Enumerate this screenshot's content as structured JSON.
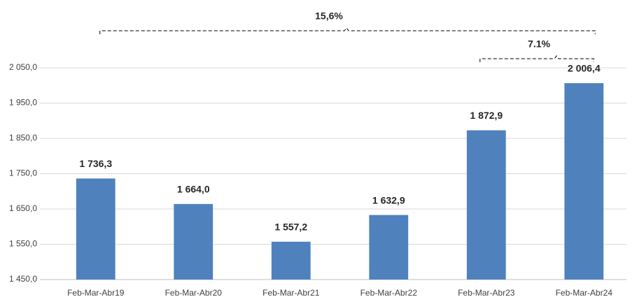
{
  "chart_data": {
    "type": "bar",
    "categories": [
      "Feb-Mar-Abr19",
      "Feb-Mar-Abr20",
      "Feb-Mar-Abr21",
      "Feb-Mar-Abr22",
      "Feb-Mar-Abr23",
      "Feb-Mar-Abr24"
    ],
    "values": [
      1736.3,
      1664.0,
      1557.2,
      1632.9,
      1872.9,
      2006.4
    ],
    "value_labels": [
      "1 736,3",
      "1 664,0",
      "1 557,2",
      "1 632,9",
      "1 872,9",
      "2 006,4"
    ],
    "color": "#4f81bd",
    "ylim": [
      1450,
      2050
    ],
    "yticks": [
      {
        "value": 1450,
        "label": "1 450,0"
      },
      {
        "value": 1550,
        "label": "1 550,0"
      },
      {
        "value": 1650,
        "label": "1 650,0"
      },
      {
        "value": 1750,
        "label": "1 750,0"
      },
      {
        "value": 1850,
        "label": "1 850,0"
      },
      {
        "value": 1950,
        "label": "1 950,0"
      },
      {
        "value": 2050,
        "label": "2 050,0"
      }
    ],
    "grid": true,
    "annotations": [
      "15,6%",
      "7.1%"
    ]
  }
}
